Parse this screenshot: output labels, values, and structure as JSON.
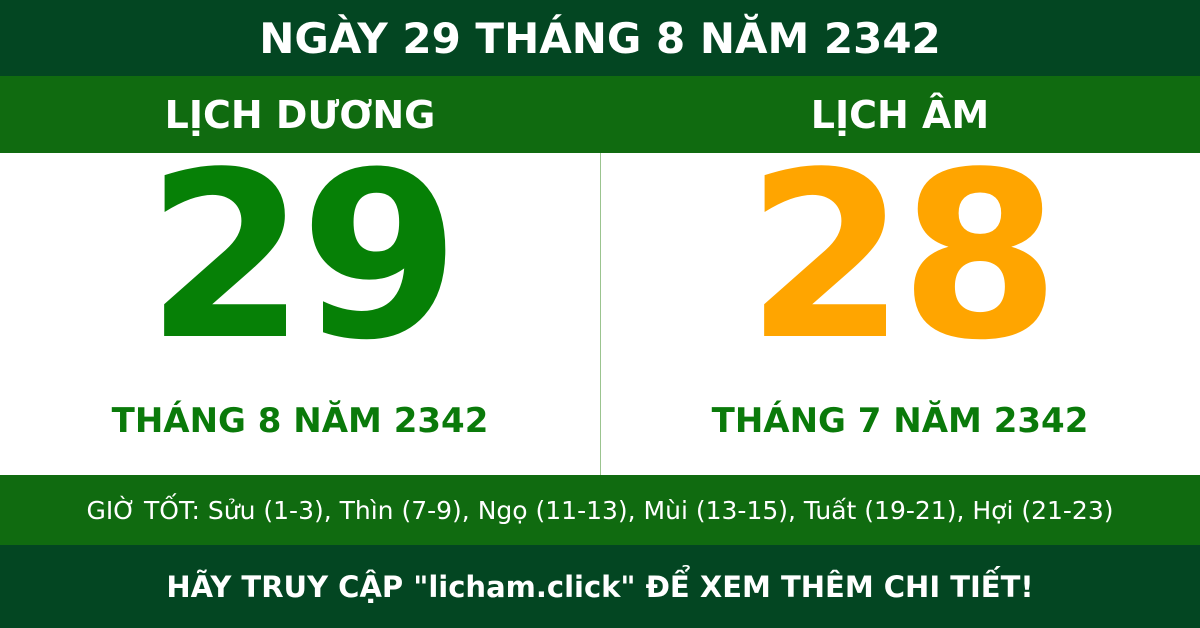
{
  "title": "NGÀY 29 THÁNG 8 NĂM 2342",
  "solar": {
    "label": "LỊCH DƯƠNG",
    "day": "29",
    "month_year": "THÁNG 8 NĂM 2342"
  },
  "lunar": {
    "label": "LỊCH ÂM",
    "day": "28",
    "month_year": "THÁNG 7 NĂM 2342"
  },
  "good_hours": "GIỜ TỐT: Sửu (1-3), Thìn (7-9), Ngọ (11-13), Mùi (13-15), Tuất (19-21), Hợi (21-23)",
  "footer": "HÃY TRUY CẬP \"licham.click\" ĐỂ XEM THÊM CHI TIẾT!",
  "colors": {
    "dark_green": "#034622",
    "green": "#106b10",
    "solar_day": "#068006",
    "lunar_day": "#ffa500"
  }
}
